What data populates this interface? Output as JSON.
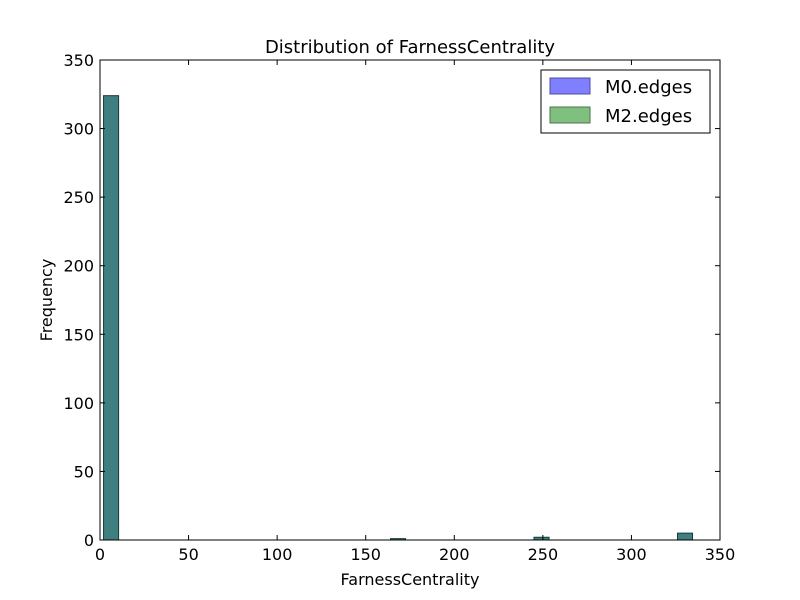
{
  "chart_data": {
    "type": "bar",
    "title": "Distribution of FarnessCentrality",
    "xlabel": "FarnessCentrality",
    "ylabel": "Frequency",
    "xlim": [
      0,
      350
    ],
    "ylim": [
      0,
      350
    ],
    "xticks": [
      "0",
      "50",
      "100",
      "150",
      "200",
      "250",
      "300",
      "350"
    ],
    "yticks": [
      "0",
      "50",
      "100",
      "150",
      "200",
      "250",
      "300",
      "350"
    ],
    "bins": [
      {
        "x0": 2,
        "x1": 10.5,
        "count": 324
      },
      {
        "x0": 164,
        "x1": 172.5,
        "count": 1
      },
      {
        "x0": 245,
        "x1": 253.5,
        "count": 2
      },
      {
        "x0": 326,
        "x1": 334.5,
        "count": 5
      }
    ],
    "series": [
      {
        "name": "M0.edges",
        "color": "#7f7fff"
      },
      {
        "name": "M2.edges",
        "color": "#7fbf7f"
      }
    ],
    "overlap_color": "#3f7f7f",
    "legend_position": "top-right",
    "grid": false
  }
}
